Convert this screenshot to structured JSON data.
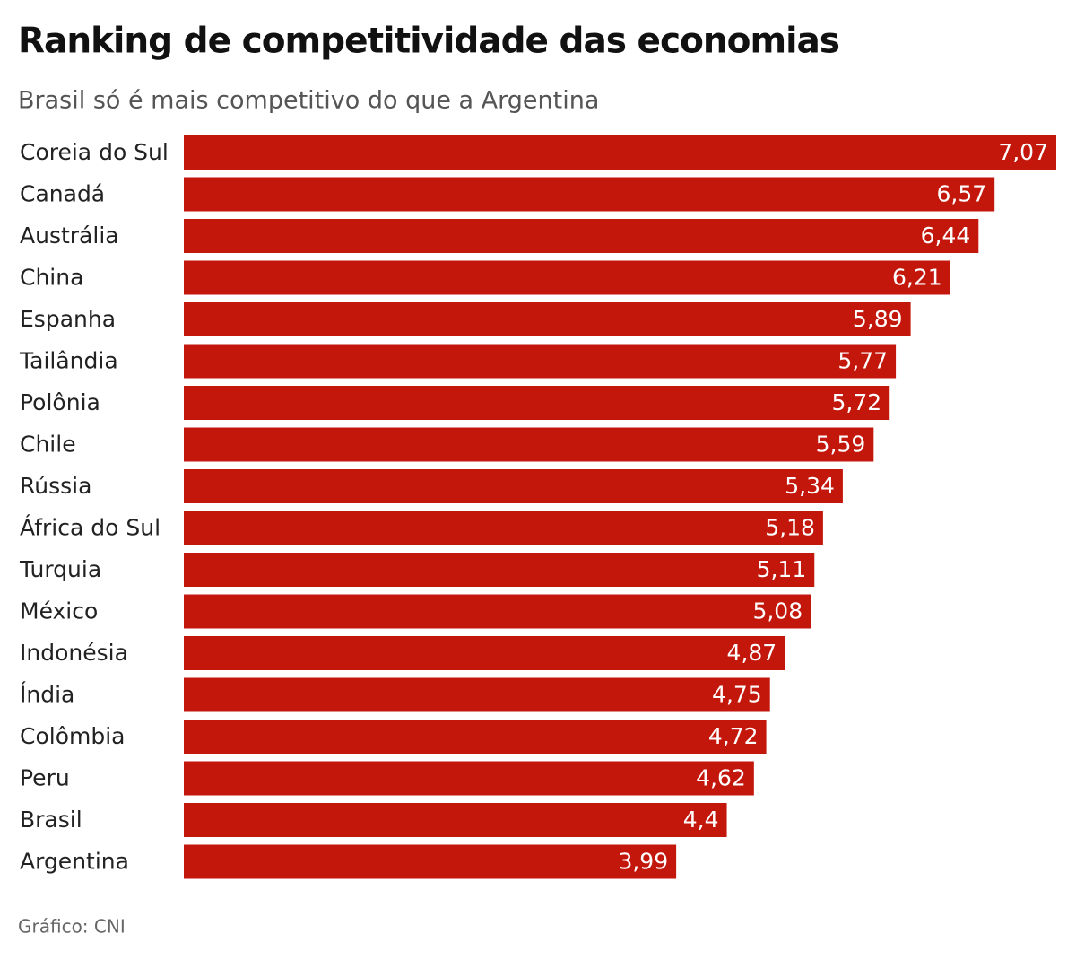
{
  "chart_data": {
    "type": "bar",
    "orientation": "horizontal",
    "title": "Ranking de competitividade das economias",
    "subtitle": "Brasil só é mais competitivo do que a Argentina",
    "source": "Gráfico: CNI",
    "color": "#c4170c",
    "categories": [
      "Coreia do Sul",
      "Canadá",
      "Austrália",
      "China",
      "Espanha",
      "Tailândia",
      "Polônia",
      "Chile",
      "Rússia",
      "África do Sul",
      "Turquia",
      "México",
      "Indonésia",
      "Índia",
      "Colômbia",
      "Peru",
      "Brasil",
      "Argentina"
    ],
    "values": [
      7.07,
      6.57,
      6.44,
      6.21,
      5.89,
      5.77,
      5.72,
      5.59,
      5.34,
      5.18,
      5.11,
      5.08,
      4.87,
      4.75,
      4.72,
      4.62,
      4.4,
      3.99
    ],
    "value_labels": [
      "7,07",
      "6,57",
      "6,44",
      "6,21",
      "5,89",
      "5,77",
      "5,72",
      "5,59",
      "5,34",
      "5,18",
      "5,11",
      "5,08",
      "4,87",
      "4,75",
      "4,72",
      "4,62",
      "4,4",
      "3,99"
    ]
  }
}
